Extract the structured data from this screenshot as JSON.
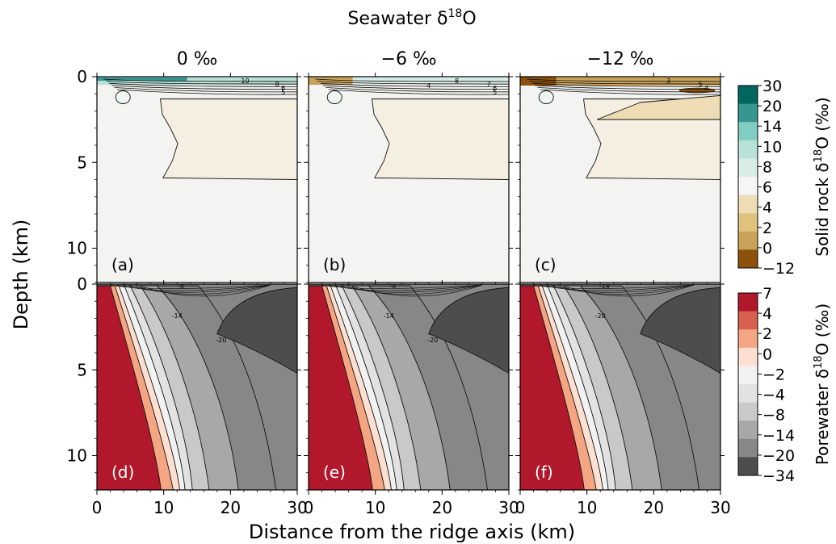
{
  "figure": {
    "title_prefix": "Seawater δ",
    "title_sup": "18",
    "title_suffix": "O",
    "xlabel": "Distance from the ridge axis (km)",
    "ylabel": "Depth (km)"
  },
  "chart_data": {
    "type": "heatmap",
    "columns": [
      "0 ‰",
      "−6 ‰",
      "−12 ‰"
    ],
    "x": {
      "ticks": [
        0,
        10,
        20,
        30
      ],
      "tick_labels": [
        "0",
        "10",
        "20",
        "30"
      ],
      "range": [
        0,
        30
      ]
    },
    "y": {
      "ticks": [
        0,
        5,
        10
      ],
      "tick_labels": [
        "0",
        "5",
        "10"
      ],
      "range": [
        0,
        12
      ],
      "inverted": true
    },
    "rows": [
      {
        "variable": "Solid rock δ18O (‰)",
        "colorbar_label": "Solid rock δ",
        "colorbar_sup": "18",
        "colorbar_suffix": "O (‰)",
        "levels": [
          -12,
          0,
          2,
          4,
          6,
          8,
          10,
          14,
          20,
          30
        ],
        "level_labels": [
          "30",
          "20",
          "14",
          "10",
          "8",
          "6",
          "4",
          "2",
          "0",
          "−12"
        ],
        "colors": [
          "#8c510a",
          "#c9a25a",
          "#dfc27d",
          "#eddcb4",
          "#f5f5f5",
          "#d8ede8",
          "#b8e1d7",
          "#80cdc1",
          "#35978f",
          "#01665e"
        ],
        "panels": [
          {
            "label": "(a)",
            "contour_labels": [
              "10",
              "8",
              "6",
              "5"
            ]
          },
          {
            "label": "(b)",
            "contour_labels": [
              "8",
              "7",
              "6",
              "5",
              "4"
            ]
          },
          {
            "label": "(c)",
            "contour_labels": [
              "3",
              "5",
              "4"
            ]
          }
        ]
      },
      {
        "variable": "Porewater δ18O (‰)",
        "colorbar_label": "Porewater δ",
        "colorbar_sup": "18",
        "colorbar_suffix": "O (‰)",
        "levels": [
          -34,
          -20,
          -14,
          -8,
          -4,
          -2,
          0,
          2,
          4,
          7
        ],
        "level_labels": [
          "7",
          "4",
          "2",
          "0",
          "−2",
          "−4",
          "−8",
          "−14",
          "−20",
          "−34"
        ],
        "colors": [
          "#4d4d4d",
          "#878787",
          "#a8a8a8",
          "#c9c9c9",
          "#e2e2e2",
          "#f2f2f2",
          "#fde0d1",
          "#f4a582",
          "#d6604d",
          "#b2182b"
        ],
        "panels": [
          {
            "label": "(d)",
            "contour_labels": [
              "-8",
              "-14",
              "-20"
            ]
          },
          {
            "label": "(e)",
            "contour_labels": [
              "-8",
              "-14",
              "-20"
            ]
          },
          {
            "label": "(f)",
            "contour_labels": [
              "-14",
              "-20"
            ]
          }
        ]
      }
    ]
  }
}
